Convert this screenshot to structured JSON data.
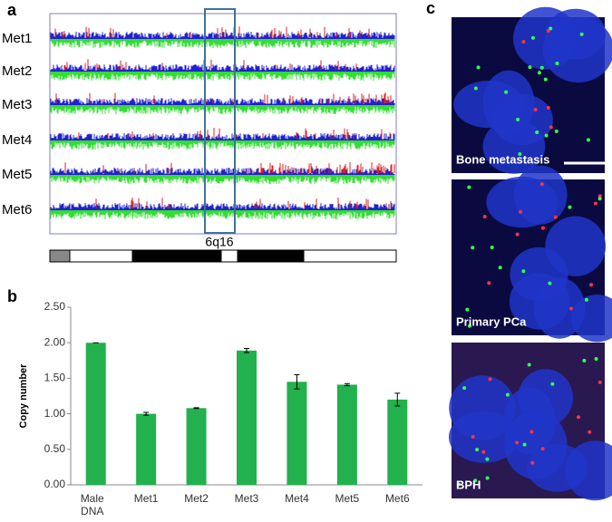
{
  "panel_a": {
    "label": "a",
    "rows": [
      "Met1",
      "Met2",
      "Met3",
      "Met4",
      "Met5",
      "Met6"
    ],
    "region_label": "6q16"
  },
  "chart_data": {
    "type": "bar",
    "panel_label": "b",
    "y_label": "Copy number",
    "categories": [
      "Male DNA",
      "Met1",
      "Met2",
      "Met3",
      "Met4",
      "Met5",
      "Met6"
    ],
    "values": [
      2.0,
      1.0,
      1.08,
      1.89,
      1.45,
      1.41,
      1.2
    ],
    "errors": [
      0,
      0.02,
      0.005,
      0.03,
      0.1,
      0.015,
      0.09
    ],
    "color": "#22b14c",
    "ylim": [
      0,
      2.5
    ],
    "yticks": [
      {
        "value": 0,
        "label": "0.00"
      },
      {
        "value": 0.5,
        "label": "0.50"
      },
      {
        "value": 1,
        "label": "1.00"
      },
      {
        "value": 1.5,
        "label": "1.50"
      },
      {
        "value": 2,
        "label": "2.00"
      },
      {
        "value": 2.5,
        "label": "2.50"
      }
    ]
  },
  "panel_c": {
    "label": "c",
    "images": [
      "Bone metastasis",
      "Primary PCa",
      "BPH"
    ]
  }
}
